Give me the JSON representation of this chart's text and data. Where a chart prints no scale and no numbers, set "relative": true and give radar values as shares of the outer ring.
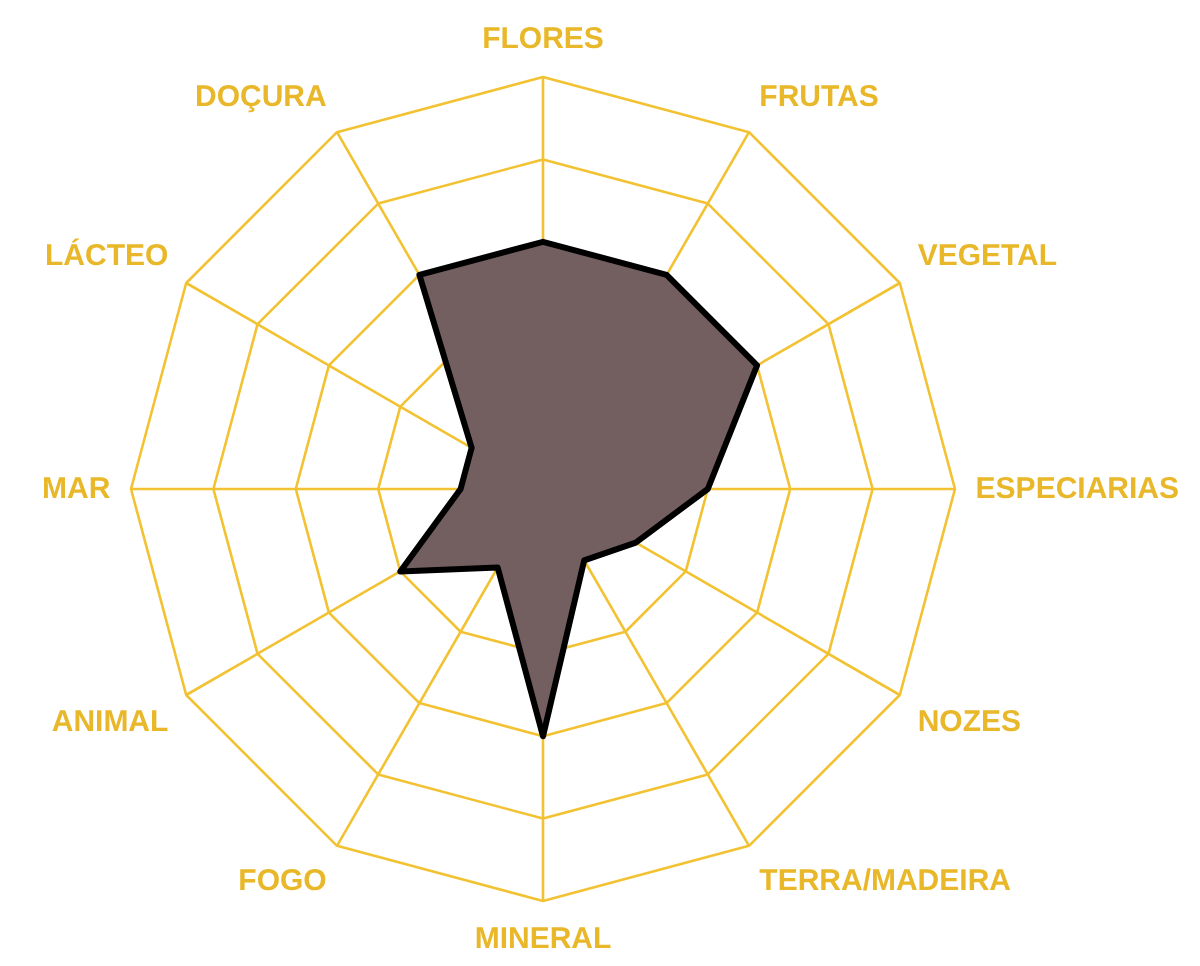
{
  "chart_data": {
    "type": "radar",
    "relative": true,
    "grid": true,
    "categories": [
      "FLORES",
      "FRUTAS",
      "VEGETAL",
      "ESPECIARIAS",
      "NOZES",
      "TERRA/MADEIRA",
      "MINERAL",
      "FOGO",
      "ANIMAL",
      "MAR",
      "LÁCTEO",
      "DOÇURA"
    ],
    "series": [
      {
        "color": "#735f5f",
        "values": [
          0.6,
          0.6,
          0.6,
          0.4,
          0.26,
          0.2,
          0.6,
          0.22,
          0.4,
          0.2,
          0.2,
          0.6
        ]
      }
    ]
  }
}
